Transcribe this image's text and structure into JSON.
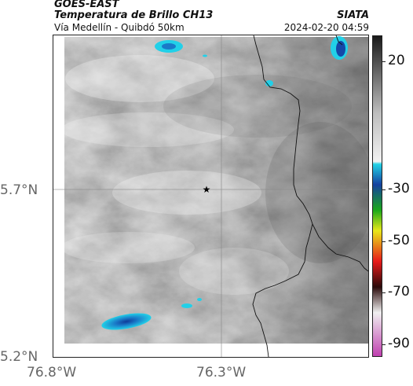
{
  "header": {
    "satellite": "GOES-EAST",
    "product": "Temperatura de Brillo CH13",
    "route": "Vía Medellín - Quibdó 50km",
    "agency": "SIATA",
    "datetime": "2024-02-20 04:59"
  },
  "axes": {
    "lat_ticks": [
      "5.7°N",
      "5.2°N"
    ],
    "lon_ticks": [
      "76.8°W",
      "76.3°W"
    ]
  },
  "colorbar": {
    "labels": [
      "20",
      "-30",
      "-50",
      "-70",
      "-90"
    ],
    "values": [
      20,
      -30,
      -50,
      -70,
      -90
    ],
    "range": [
      30,
      -95
    ],
    "stops": [
      {
        "t": 30,
        "color": "#1a1a1a"
      },
      {
        "t": 0,
        "color": "#bdbdbd"
      },
      {
        "t": -19,
        "color": "#f2f2f2"
      },
      {
        "t": -20,
        "color": "#22d3e6"
      },
      {
        "t": -28,
        "color": "#1540a0"
      },
      {
        "t": -38,
        "color": "#1aa81a"
      },
      {
        "t": -46,
        "color": "#e8e81a"
      },
      {
        "t": -58,
        "color": "#e81a1a"
      },
      {
        "t": -68,
        "color": "#2a0a0a"
      },
      {
        "t": -78,
        "color": "#f0f0f0"
      },
      {
        "t": -95,
        "color": "#c040b0"
      }
    ]
  },
  "map": {
    "marker": "star",
    "colors": {
      "cold_cloud": "#1ec8e6",
      "cold_core": "#1448a8",
      "border": "#111111",
      "grid": "#8a8a8a"
    }
  }
}
